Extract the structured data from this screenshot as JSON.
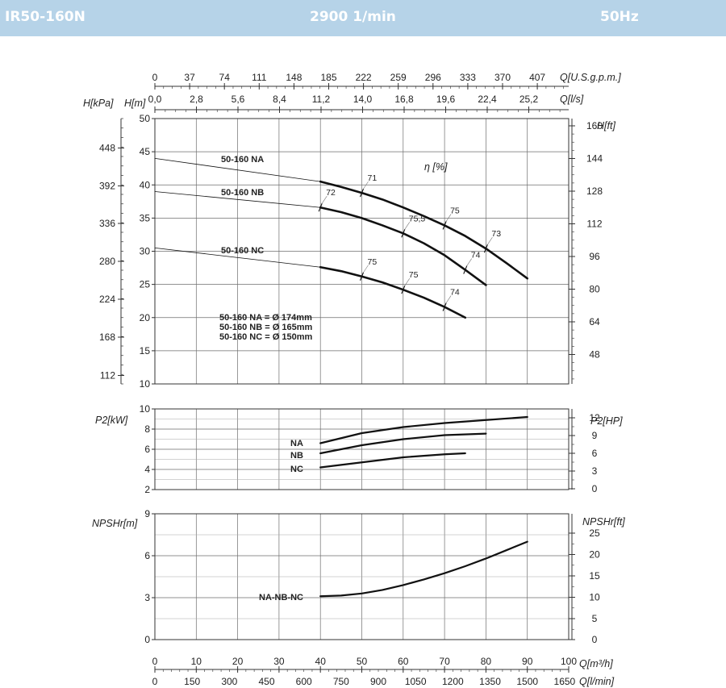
{
  "header": {
    "model": "IR50-160N",
    "speed": "2900 1/min",
    "frequency": "50Hz"
  },
  "chart_data": [
    {
      "type": "line",
      "panel": "head",
      "x_unit": "Q[m³/h]",
      "xlim": [
        0,
        100
      ],
      "ylim": [
        10,
        50
      ],
      "y_ticks": [
        10,
        15,
        20,
        25,
        30,
        35,
        40,
        45,
        50
      ],
      "ylabel_left": "H[m]",
      "ylabel_kpa": "H[kPa]",
      "kpa_ticks": [
        "448",
        "392",
        "336",
        "280",
        "224",
        "168",
        "112"
      ],
      "ylabel_right": "H[ft]",
      "ft_ticks": [
        "160",
        "144",
        "128",
        "112",
        "96",
        "80",
        "64",
        "48"
      ],
      "top_axes": [
        {
          "label": "Q[U.S.g.p.m.]",
          "ticks": [
            "0",
            "37",
            "74",
            "111",
            "148",
            "185",
            "222",
            "259",
            "296",
            "333",
            "370",
            "407"
          ]
        },
        {
          "label": "Q[l/s]",
          "ticks": [
            "0,0",
            "2,8",
            "5,6",
            "8,4",
            "11,2",
            "14,0",
            "16,8",
            "19,6",
            "22,4",
            "25,2"
          ]
        }
      ],
      "efficiency_label": "η [%]",
      "series": [
        {
          "name": "50-160 NA",
          "x": [
            0,
            40,
            45,
            50,
            55,
            60,
            65,
            70,
            75,
            80,
            85,
            90
          ],
          "y": [
            44,
            40.5,
            39.7,
            38.8,
            37.8,
            36.6,
            35.3,
            33.9,
            32.3,
            30.4,
            28.2,
            25.9
          ]
        },
        {
          "name": "50-160 NB",
          "x": [
            0,
            40,
            45,
            50,
            55,
            60,
            65,
            70,
            75,
            80
          ],
          "y": [
            39,
            36.6,
            35.9,
            35.0,
            33.9,
            32.7,
            31.2,
            29.4,
            27.2,
            24.9
          ]
        },
        {
          "name": "50-160 NC",
          "x": [
            0,
            40,
            45,
            50,
            55,
            60,
            65,
            70,
            75
          ],
          "y": [
            30.5,
            27.6,
            27.0,
            26.2,
            25.3,
            24.2,
            23.0,
            21.6,
            20.0
          ]
        }
      ],
      "efficiency_marks": [
        {
          "label": "71",
          "x": 50,
          "y": 38.8
        },
        {
          "label": "75",
          "x": 70,
          "y": 33.9
        },
        {
          "label": "73",
          "x": 80,
          "y": 30.4
        },
        {
          "label": "72",
          "x": 40,
          "y": 36.6
        },
        {
          "label": "75,5",
          "x": 60,
          "y": 32.7
        },
        {
          "label": "74",
          "x": 75,
          "y": 27.2
        },
        {
          "label": "75",
          "x": 50,
          "y": 26.2
        },
        {
          "label": "75",
          "x": 60,
          "y": 24.2
        },
        {
          "label": "74",
          "x": 70,
          "y": 21.6
        }
      ],
      "diameters": [
        "50-160 NA = Ø 174mm",
        "50-160 NB = Ø 165mm",
        "50-160 NC = Ø 150mm"
      ]
    },
    {
      "type": "line",
      "panel": "power",
      "xlim": [
        0,
        100
      ],
      "ylim": [
        2,
        10
      ],
      "y_ticks": [
        2,
        4,
        6,
        8,
        10
      ],
      "ylabel_left": "P2[kW]",
      "ylabel_right": "P2[HP]",
      "hp_ticks": [
        "12",
        "9",
        "6",
        "3",
        "0"
      ],
      "series": [
        {
          "name": "NA",
          "x": [
            40,
            50,
            60,
            70,
            80,
            90
          ],
          "y": [
            6.6,
            7.6,
            8.2,
            8.6,
            8.9,
            9.2
          ]
        },
        {
          "name": "NB",
          "x": [
            40,
            50,
            60,
            70,
            80
          ],
          "y": [
            5.6,
            6.4,
            7.0,
            7.4,
            7.55
          ]
        },
        {
          "name": "NC",
          "x": [
            40,
            50,
            60,
            70,
            75
          ],
          "y": [
            4.2,
            4.7,
            5.2,
            5.5,
            5.6
          ]
        }
      ]
    },
    {
      "type": "line",
      "panel": "npsh",
      "xlim": [
        0,
        100
      ],
      "ylim": [
        0,
        9
      ],
      "y_ticks": [
        0,
        3,
        6,
        9
      ],
      "ylabel_left": "NPSHr[m]",
      "ylabel_right": "NPSHr[ft]",
      "ft_ticks": [
        "25",
        "20",
        "15",
        "10",
        "5",
        "0"
      ],
      "series": [
        {
          "name": "NA-NB-NC",
          "x": [
            40,
            45,
            50,
            55,
            60,
            65,
            70,
            75,
            80,
            85,
            90
          ],
          "y": [
            3.1,
            3.15,
            3.3,
            3.55,
            3.9,
            4.3,
            4.75,
            5.25,
            5.8,
            6.4,
            7.0
          ]
        }
      ],
      "bottom_axes": [
        {
          "label": "Q[m³/h]",
          "ticks": [
            "0",
            "10",
            "20",
            "30",
            "40",
            "50",
            "60",
            "70",
            "80",
            "90",
            "100"
          ]
        },
        {
          "label": "Q[l/min]",
          "ticks": [
            "0",
            "150",
            "300",
            "450",
            "600",
            "750",
            "900",
            "1050",
            "1200",
            "1350",
            "1500",
            "1650"
          ]
        }
      ]
    }
  ]
}
